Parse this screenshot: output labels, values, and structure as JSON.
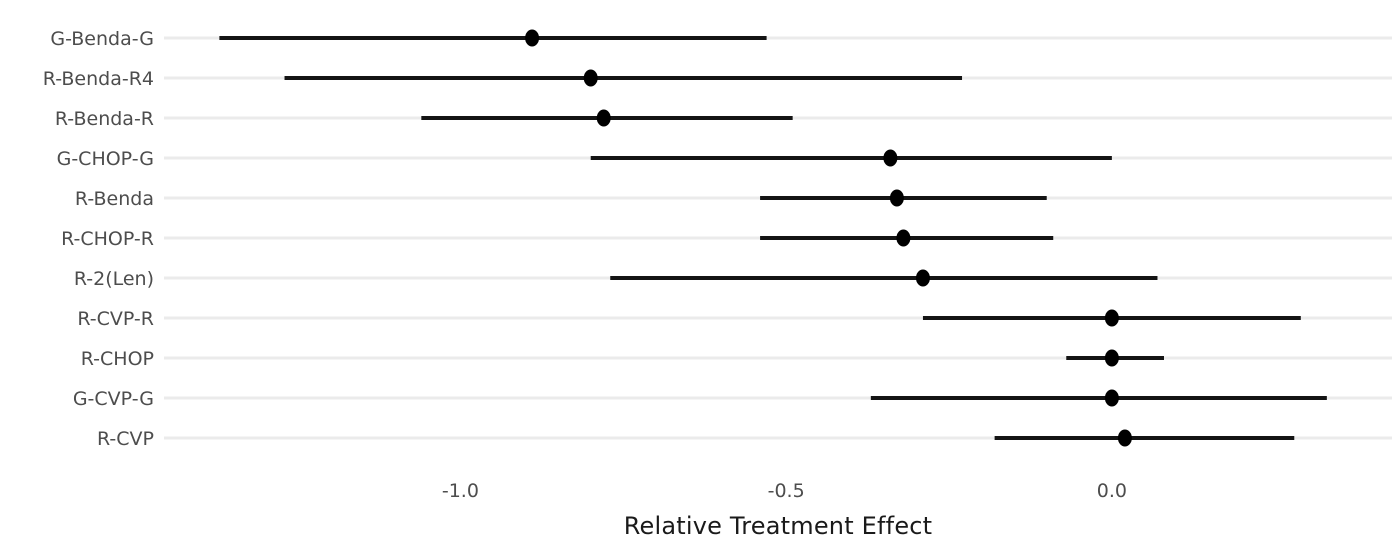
{
  "chart_data": {
    "type": "scatter",
    "subtype": "forest-plot",
    "title": "",
    "xlabel": "Relative Treatment Effect",
    "ylabel": "",
    "categories": [
      "G-Benda-G",
      "R-Benda-R4",
      "R-Benda-R",
      "G-CHOP-G",
      "R-Benda",
      "R-CHOP-R",
      "R-2(Len)",
      "R-CVP-R",
      "R-CHOP",
      "G-CVP-G",
      "R-CVP"
    ],
    "points": [
      -0.89,
      -0.8,
      -0.78,
      -0.34,
      -0.33,
      -0.32,
      -0.29,
      0.0,
      0.0,
      0.0,
      0.02
    ],
    "ci_lower": [
      -1.37,
      -1.27,
      -1.06,
      -0.8,
      -0.54,
      -0.54,
      -0.77,
      -0.29,
      -0.07,
      -0.37,
      -0.18
    ],
    "ci_upper": [
      -0.53,
      -0.23,
      -0.49,
      0.0,
      -0.1,
      -0.09,
      0.07,
      0.29,
      0.08,
      0.33,
      0.28
    ],
    "x_ticks": [
      -1.0,
      -0.5,
      0.0
    ],
    "x_tick_labels": [
      "-1.0",
      "-0.5",
      "0.0"
    ],
    "xlim": [
      -1.455,
      0.43
    ],
    "grid": "horizontal-row-lines-only",
    "legend": "none",
    "colors": {
      "point": "#000000",
      "ci_line": "#141414",
      "row_line": "#ebebeb",
      "category_text": "#4d4d4d",
      "tick_text": "#4d4d4d",
      "axis_title_text": "#1a1a1a",
      "background": "#ffffff"
    }
  }
}
